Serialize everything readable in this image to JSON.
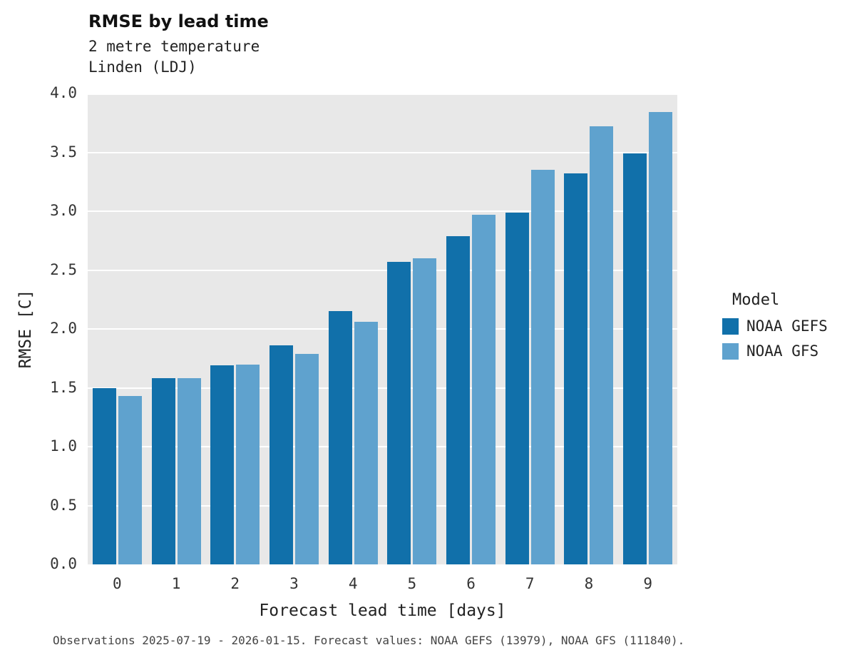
{
  "header": {
    "title": "RMSE by lead time",
    "subtitle_line1": "2 metre temperature",
    "subtitle_line2": "Linden (LDJ)"
  },
  "legend": {
    "title": "Model",
    "entries": [
      {
        "label": "NOAA GEFS",
        "color": "#1170aa"
      },
      {
        "label": "NOAA GFS",
        "color": "#5fa2ce"
      }
    ]
  },
  "footer": {
    "caption": "Observations 2025-07-19 - 2026-01-15. Forecast values: NOAA GEFS (13979), NOAA GFS (111840)."
  },
  "chart_data": {
    "type": "bar",
    "title": "RMSE by lead time",
    "subtitle": "2 metre temperature — Linden (LDJ)",
    "xlabel": "Forecast lead time [days]",
    "ylabel": "RMSE [C]",
    "categories": [
      "0",
      "1",
      "2",
      "3",
      "4",
      "5",
      "6",
      "7",
      "8",
      "9"
    ],
    "series": [
      {
        "name": "NOAA GEFS",
        "color": "#1170aa",
        "values": [
          1.5,
          1.58,
          1.69,
          1.86,
          2.15,
          2.57,
          2.79,
          2.99,
          3.32,
          3.49
        ]
      },
      {
        "name": "NOAA GFS",
        "color": "#5fa2ce",
        "values": [
          1.43,
          1.58,
          1.7,
          1.79,
          2.06,
          2.6,
          2.97,
          3.35,
          3.72,
          3.84
        ]
      }
    ],
    "ylim": [
      0,
      4.0
    ],
    "ytick_step": 0.5,
    "grid": true,
    "plot_background": "#e8e8e8",
    "legend_position": "right"
  }
}
